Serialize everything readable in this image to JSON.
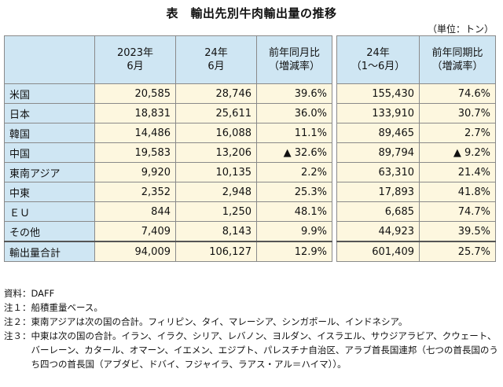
{
  "title": "表　輸出先別牛肉輸出量の推移",
  "unit": "（単位：トン）",
  "table": {
    "headers": [
      {
        "line1": "2023年",
        "line2": "6月"
      },
      {
        "line1": "24年",
        "line2": "6月"
      },
      {
        "line1": "前年同月比",
        "line2": "（増減率）"
      },
      {
        "line1": "24年",
        "line2": "（1～6月）"
      },
      {
        "line1": "前年同期比",
        "line2": "（増減率）"
      }
    ],
    "rows": [
      {
        "label": "米国",
        "values": [
          "20,585",
          "28,746",
          "39.6%",
          "155,430",
          "74.6%"
        ]
      },
      {
        "label": "日本",
        "values": [
          "18,831",
          "25,611",
          "36.0%",
          "133,910",
          "30.7%"
        ]
      },
      {
        "label": "韓国",
        "values": [
          "14,486",
          "16,088",
          "11.1%",
          "89,465",
          "2.7%"
        ]
      },
      {
        "label": "中国",
        "values": [
          "19,583",
          "13,206",
          "▲ 32.6%",
          "89,794",
          "▲ 9.2%"
        ]
      },
      {
        "label": "東南アジア",
        "values": [
          "9,920",
          "10,135",
          "2.2%",
          "63,310",
          "21.4%"
        ]
      },
      {
        "label": "中東",
        "values": [
          "2,352",
          "2,948",
          "25.3%",
          "17,893",
          "41.8%"
        ]
      },
      {
        "label": "ＥＵ",
        "values": [
          "844",
          "1,250",
          "48.1%",
          "6,685",
          "74.7%"
        ]
      },
      {
        "label": "その他",
        "values": [
          "7,409",
          "8,143",
          "9.9%",
          "44,923",
          "39.5%"
        ]
      }
    ],
    "total": {
      "label": "輸出量合計",
      "values": [
        "94,009",
        "106,127",
        "12.9%",
        "601,409",
        "25.7%"
      ]
    }
  },
  "notes": [
    {
      "key": "資料：",
      "text": "DAFF"
    },
    {
      "key": "注１：",
      "text": "船積重量ベース。"
    },
    {
      "key": "注２：",
      "text": "東南アジアは次の国の合計。フィリピン、タイ、マレーシア、シンガポール、インドネシア。"
    },
    {
      "key": "注３：",
      "text": "中東は次の国の合計。イラン、イラク、シリア、レバノン、ヨルダン、イスラエル、サウジアラビア、クウェート、バーレーン、カタール、オマーン、イエメン、エジプト、パレスチナ自治区、アラブ首長国連邦（七つの首長国のうち四つの首長国（アブダビ、ドバイ、フジャイラ、ラアス・アル＝ハイマ））。"
    }
  ]
}
